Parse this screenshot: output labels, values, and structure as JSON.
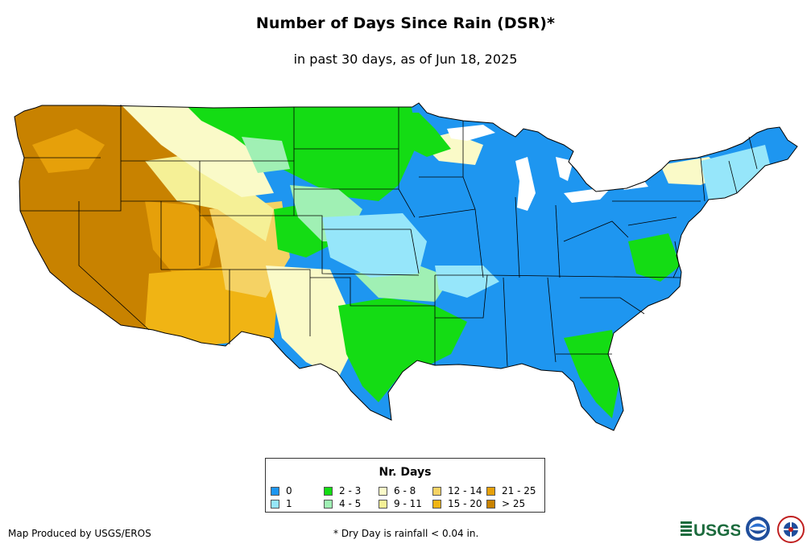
{
  "map": {
    "title": "Number of Days Since Rain (DSR)*",
    "subtitle": "in past 30 days, as of Jun 18, 2025"
  },
  "legend": {
    "title": "Nr. Days",
    "items": [
      {
        "label": "0",
        "color": "#1e96f0"
      },
      {
        "label": "1",
        "color": "#96e6fa"
      },
      {
        "label": "2 - 3",
        "color": "#14dc14"
      },
      {
        "label": "4 - 5",
        "color": "#a0f0b4"
      },
      {
        "label": "6 - 8",
        "color": "#fafac8"
      },
      {
        "label": "9 - 11",
        "color": "#f5f096"
      },
      {
        "label": "12 - 14",
        "color": "#f5d264"
      },
      {
        "label": "15 - 20",
        "color": "#f0b414"
      },
      {
        "label": "21 - 25",
        "color": "#e6a00a"
      },
      {
        "label": "> 25",
        "color": "#c88200"
      }
    ]
  },
  "footer": {
    "credit": "Map Produced by USGS/EROS",
    "footnote": "* Dry Day is rainfall < 0.04 in.",
    "logos": [
      "USGS",
      "NOAA",
      "NWS"
    ]
  }
}
